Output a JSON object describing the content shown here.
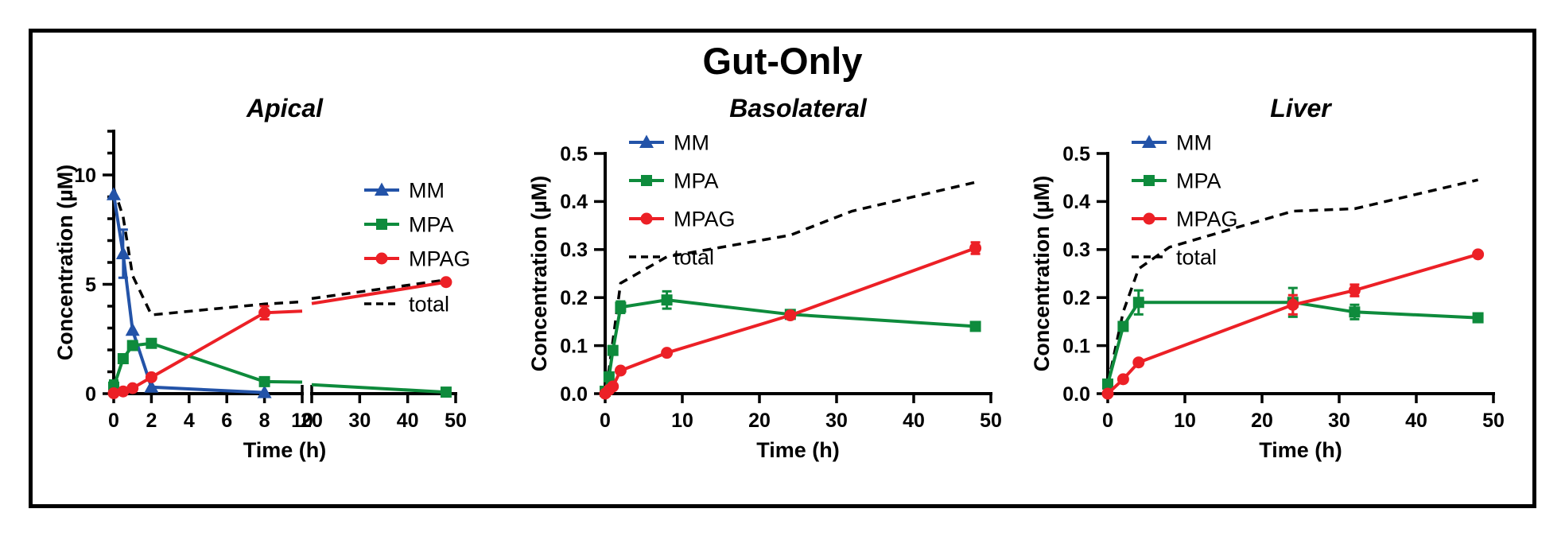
{
  "figure_title": "Gut-Only",
  "colors": {
    "mm_blue": "#2353A8",
    "mpa_green": "#0E8B3C",
    "mpag_red": "#EC2026",
    "total_black": "#000000"
  },
  "chart_data": [
    {
      "type": "line",
      "title": "Apical",
      "xlabel": "Time (h)",
      "ylabel": "Concentration (µM)",
      "legend_position": "right",
      "x_axis": {
        "broken": true,
        "segments": [
          {
            "range": [
              0,
              10
            ],
            "ticks": [
              0,
              2,
              4,
              6,
              8,
              10
            ]
          },
          {
            "range": [
              20,
              50
            ],
            "ticks": [
              20,
              30,
              40,
              50
            ]
          }
        ]
      },
      "y_axis": {
        "min": 0,
        "max": 12,
        "minor_step": 1,
        "labeled": [
          0,
          5,
          10
        ],
        "decimals": 0
      },
      "series": [
        {
          "name": "MM",
          "color": "#2353A8",
          "marker": "triangle",
          "dashed": false,
          "points": [
            [
              0,
              9.1
            ],
            [
              0.5,
              6.4
            ],
            [
              1,
              2.9
            ],
            [
              2,
              0.3
            ],
            [
              8,
              0.05
            ]
          ],
          "errors": {
            "0.5": 1.1
          }
        },
        {
          "name": "MPA",
          "color": "#0E8B3C",
          "marker": "square",
          "dashed": false,
          "points": [
            [
              0,
              0.3
            ],
            [
              0.5,
              1.6
            ],
            [
              1,
              2.2
            ],
            [
              2,
              2.3
            ],
            [
              8,
              0.55
            ],
            [
              48,
              0.07
            ]
          ],
          "errors": {
            "0": 0.3
          }
        },
        {
          "name": "MPAG",
          "color": "#EC2026",
          "marker": "circle",
          "dashed": false,
          "points": [
            [
              0,
              0.02
            ],
            [
              0.5,
              0.1
            ],
            [
              1,
              0.25
            ],
            [
              2,
              0.75
            ],
            [
              8,
              3.7
            ],
            [
              48,
              5.1
            ]
          ],
          "errors": {
            "8": 0.3
          }
        },
        {
          "name": "total",
          "color": "#000000",
          "marker": "none",
          "dashed": true,
          "points": [
            [
              0,
              9.4
            ],
            [
              0.5,
              8.1
            ],
            [
              1,
              5.4
            ],
            [
              2,
              3.6
            ],
            [
              8,
              4.1
            ],
            [
              10,
              4.2
            ],
            [
              20,
              4.35
            ],
            [
              48,
              5.2
            ]
          ],
          "errors": {}
        }
      ]
    },
    {
      "type": "line",
      "title": "Basolateral",
      "xlabel": "Time (h)",
      "ylabel": "Concentration (µM)",
      "legend_position": "top-left",
      "x_axis": {
        "broken": false,
        "segments": [
          {
            "range": [
              0,
              50
            ],
            "ticks": [
              0,
              10,
              20,
              30,
              40,
              50
            ]
          }
        ]
      },
      "y_axis": {
        "min": 0,
        "max": 0.5,
        "minor_step": null,
        "labeled": [
          0,
          0.1,
          0.2,
          0.3,
          0.4,
          0.5
        ],
        "decimals": 1
      },
      "series": [
        {
          "name": "MM",
          "color": "#2353A8",
          "marker": "triangle",
          "dashed": false,
          "points": [],
          "errors": {}
        },
        {
          "name": "MPA",
          "color": "#0E8B3C",
          "marker": "square",
          "dashed": false,
          "points": [
            [
              0,
              0.005
            ],
            [
              0.5,
              0.035
            ],
            [
              1,
              0.09
            ],
            [
              2,
              0.18
            ],
            [
              8,
              0.195
            ],
            [
              24,
              0.165
            ],
            [
              48,
              0.14
            ]
          ],
          "errors": {
            "2": 0.012,
            "8": 0.018
          }
        },
        {
          "name": "MPAG",
          "color": "#EC2026",
          "marker": "circle",
          "dashed": false,
          "points": [
            [
              0,
              0.0
            ],
            [
              0.5,
              0.008
            ],
            [
              1,
              0.015
            ],
            [
              2,
              0.048
            ],
            [
              8,
              0.085
            ],
            [
              24,
              0.163
            ],
            [
              48,
              0.303
            ]
          ],
          "errors": {
            "48": 0.012
          }
        },
        {
          "name": "total",
          "color": "#000000",
          "marker": "none",
          "dashed": true,
          "points": [
            [
              0,
              0.01
            ],
            [
              0.5,
              0.05
            ],
            [
              1,
              0.11
            ],
            [
              2,
              0.23
            ],
            [
              8,
              0.285
            ],
            [
              24,
              0.33
            ],
            [
              32,
              0.38
            ],
            [
              48,
              0.44
            ]
          ],
          "errors": {}
        }
      ]
    },
    {
      "type": "line",
      "title": "Liver",
      "xlabel": "Time (h)",
      "ylabel": "Concentration (µM)",
      "legend_position": "top-left",
      "x_axis": {
        "broken": false,
        "segments": [
          {
            "range": [
              0,
              50
            ],
            "ticks": [
              0,
              10,
              20,
              30,
              40,
              50
            ]
          }
        ]
      },
      "y_axis": {
        "min": 0,
        "max": 0.5,
        "minor_step": null,
        "labeled": [
          0,
          0.1,
          0.2,
          0.3,
          0.4,
          0.5
        ],
        "decimals": 1
      },
      "series": [
        {
          "name": "MM",
          "color": "#2353A8",
          "marker": "triangle",
          "dashed": false,
          "points": [],
          "errors": {}
        },
        {
          "name": "MPA",
          "color": "#0E8B3C",
          "marker": "square",
          "dashed": false,
          "points": [
            [
              0,
              0.02
            ],
            [
              2,
              0.14
            ],
            [
              4,
              0.19
            ],
            [
              24,
              0.19
            ],
            [
              32,
              0.17
            ],
            [
              48,
              0.158
            ]
          ],
          "errors": {
            "4": 0.025,
            "24": 0.03,
            "32": 0.015,
            "48": 0.008
          }
        },
        {
          "name": "MPAG",
          "color": "#EC2026",
          "marker": "circle",
          "dashed": false,
          "points": [
            [
              0,
              0.0
            ],
            [
              2,
              0.03
            ],
            [
              4,
              0.065
            ],
            [
              24,
              0.185
            ],
            [
              32,
              0.215
            ],
            [
              48,
              0.29
            ]
          ],
          "errors": {
            "24": 0.02,
            "32": 0.012
          }
        },
        {
          "name": "total",
          "color": "#000000",
          "marker": "none",
          "dashed": true,
          "points": [
            [
              0,
              0.02
            ],
            [
              2,
              0.17
            ],
            [
              4,
              0.26
            ],
            [
              8,
              0.305
            ],
            [
              24,
              0.38
            ],
            [
              32,
              0.385
            ],
            [
              48,
              0.445
            ]
          ],
          "errors": {}
        }
      ]
    }
  ]
}
